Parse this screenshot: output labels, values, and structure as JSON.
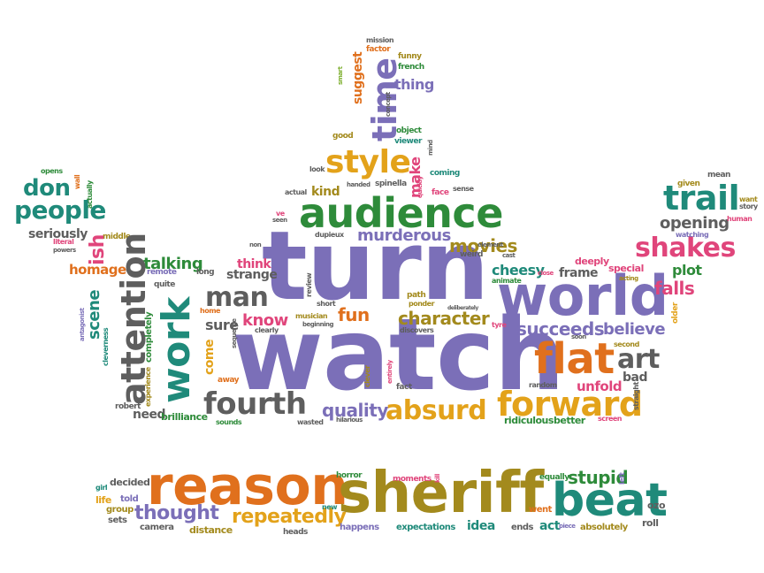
{
  "words": {
    "turn": "turn",
    "watch": "watch",
    "world": "world",
    "reason": "reason",
    "sheriff": "sheriff",
    "beat": "beat",
    "audience": "audience",
    "flat": "flat",
    "time": "time",
    "work": "work",
    "attention": "attention",
    "style": "style",
    "forward": "forward",
    "fourth": "fourth",
    "trail": "trail",
    "shakes": "shakes",
    "absurd": "absurd",
    "man": "man",
    "people": "people",
    "don": "don",
    "art": "art",
    "thought": "thought",
    "repeatedly": "repeatedly",
    "quality": "quality",
    "succeeds": "succeeds",
    "believe": "believe",
    "character": "character",
    "movies": "movies",
    "murderous": "murderous",
    "make": "make",
    "ish": "ish",
    "scene": "scene",
    "stupid": "stupid",
    "opening": "opening",
    "falls": "falls",
    "talking": "talking",
    "know": "know",
    "strange": "strange",
    "sure": "sure",
    "fun": "fun",
    "cheesy": "cheesy",
    "unfold": "unfold",
    "bad": "bad",
    "plot": "plot",
    "suggest": "suggest",
    "thing": "thing",
    "kind": "kind",
    "homage": "homage",
    "seriously": "seriously",
    "think": "think",
    "frame": "frame",
    "idea": "idea",
    "come": "come",
    "completely": "completely",
    "need": "need",
    "brilliance": "brilliance",
    "ridiculous": "ridiculous",
    "better": "better",
    "special": "special",
    "deeply": "deeply",
    "decided": "decided",
    "life": "life",
    "told": "told",
    "group": "group",
    "sets": "sets",
    "camera": "camera",
    "distance": "distance",
    "heads": "heads",
    "happens": "happens",
    "expectations": "expectations",
    "ends": "ends",
    "act": "act",
    "absolutely": "absolutely",
    "roll": "roll",
    "went": "went",
    "equally": "equally",
    "left": "left",
    "ozo": "ozo",
    "horror": "horror",
    "moments": "moments",
    "kill": "kill",
    "new": "new",
    "girl": "girl",
    "mission": "mission",
    "factor": "factor",
    "funny": "funny",
    "french": "french",
    "smart": "smart",
    "concept": "concept",
    "object": "object",
    "viewer": "viewer",
    "good": "good",
    "mind": "mind",
    "coming": "coming",
    "look": "look",
    "spinella": "spinella",
    "handed": "handed",
    "quickly": "quickly",
    "actual": "actual",
    "face": "face",
    "sense": "sense",
    "ve": "ve",
    "seen": "seen",
    "dupieux": "dupieux",
    "weird": "weird",
    "element": "element",
    "cast": "cast",
    "animate": "animate",
    "close": "close",
    "acting": "acting",
    "older": "older",
    "given": "given",
    "mean": "mean",
    "want": "want",
    "story": "story",
    "human": "human",
    "watching": "watching",
    "wall": "wall",
    "actually": "actually",
    "opens": "opens",
    "middle": "middle",
    "literal": "literal",
    "powers": "powers",
    "remote": "remote",
    "quite": "quite",
    "long": "long",
    "home": "home",
    "antagonist": "antagonist",
    "cleverness": "cleverness",
    "experience": "experience",
    "robert": "robert",
    "away": "away",
    "sounds": "sounds",
    "sequence": "sequence",
    "review": "review",
    "non": "non",
    "clearly": "clearly",
    "musician": "musician",
    "beginning": "beginning",
    "short": "short",
    "path": "path",
    "ponder": "ponder",
    "tyre": "tyre",
    "discovers": "discovers",
    "soon": "soon",
    "second": "second",
    "deliberately": "deliberately",
    "straight": "straight",
    "random": "random",
    "fact": "fact",
    "entirely": "entirely",
    "clever": "clever",
    "hilarious": "hilarious",
    "wasted": "wasted",
    "screen": "screen",
    "piece": "piece"
  }
}
